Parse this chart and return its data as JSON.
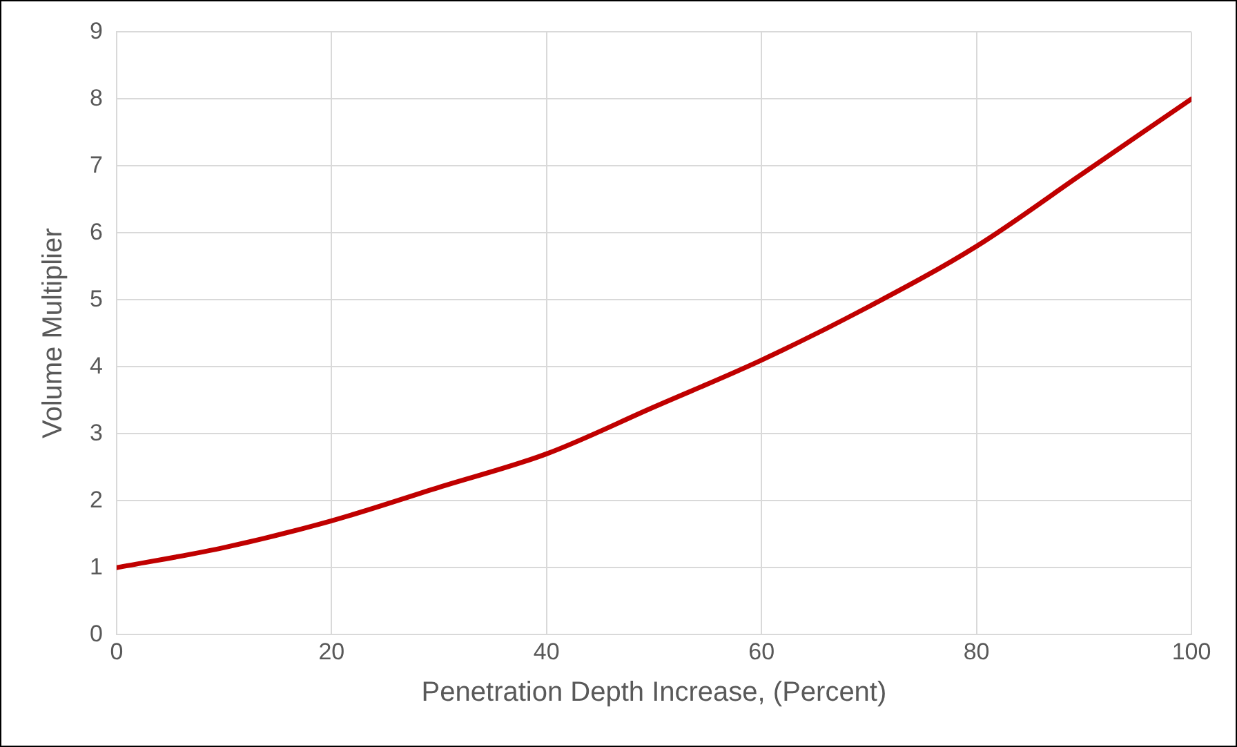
{
  "chart_data": {
    "type": "line",
    "xlabel": "Penetration Depth Increase, (Percent)",
    "ylabel": "Volume Multiplier",
    "x": [
      0,
      10,
      20,
      30,
      40,
      50,
      60,
      70,
      80,
      90,
      100
    ],
    "series": [
      {
        "color": "#c00000",
        "values": [
          1,
          1.3,
          1.7,
          2.2,
          2.7,
          3.4,
          4.1,
          4.9,
          5.8,
          6.9,
          8
        ]
      }
    ],
    "xlim": [
      0,
      100
    ],
    "xticks": [
      0,
      20,
      40,
      60,
      80,
      100
    ],
    "ylim": [
      0,
      9
    ],
    "yticks": [
      0,
      1,
      2,
      3,
      4,
      5,
      6,
      7,
      8,
      9
    ],
    "grid": true,
    "legend": false,
    "marker": "none",
    "line_style": "solid"
  }
}
